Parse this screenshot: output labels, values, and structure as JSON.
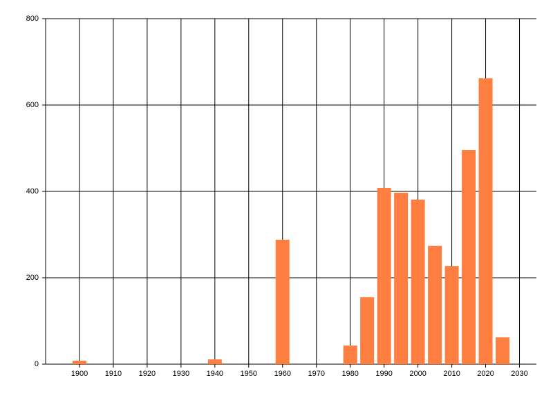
{
  "chart_data": {
    "type": "bar",
    "x": [
      1900,
      1940,
      1960,
      1980,
      1985,
      1990,
      1995,
      2000,
      2005,
      2010,
      2015,
      2020,
      2025
    ],
    "values": [
      8,
      11,
      288,
      43,
      155,
      408,
      397,
      381,
      274,
      227,
      496,
      662,
      62
    ],
    "color": "#ff7f41",
    "xlim": [
      1890,
      2035
    ],
    "xticks": [
      1900,
      1910,
      1920,
      1930,
      1940,
      1950,
      1960,
      1970,
      1980,
      1990,
      2000,
      2010,
      2020,
      2030
    ],
    "ylim": [
      0,
      800
    ],
    "yticks": [
      0,
      200,
      400,
      600,
      800
    ],
    "grid": true
  }
}
